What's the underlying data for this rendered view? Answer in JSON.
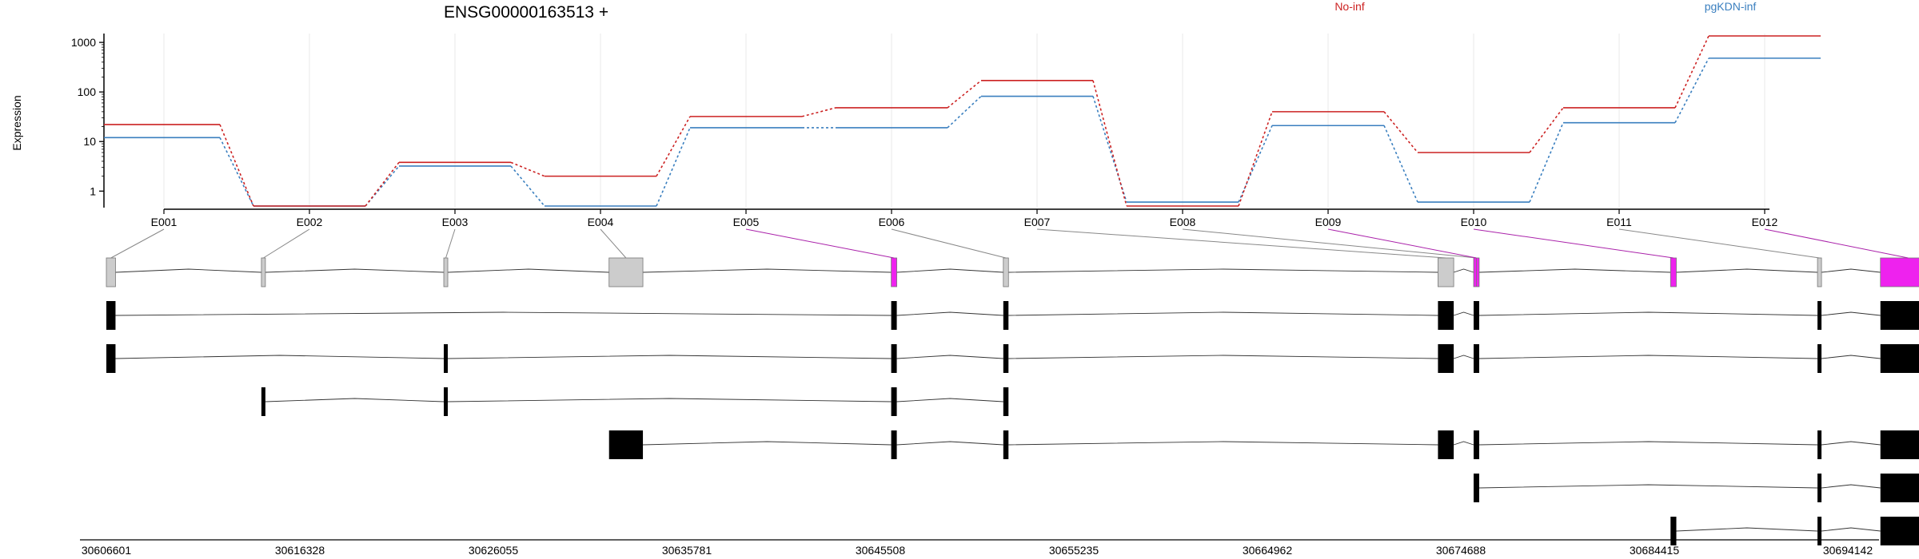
{
  "chart_data": {
    "type": "line",
    "title": "ENSG00000163513 +",
    "ylabel": "Expression",
    "yscale": "log",
    "yticks": [
      "1",
      "10",
      "100",
      "1000"
    ],
    "categories": [
      "E001",
      "E002",
      "E003",
      "E004",
      "E005",
      "E006",
      "E007",
      "E008",
      "E009",
      "E010",
      "E011",
      "E012"
    ],
    "series": [
      {
        "name": "No-inf",
        "color": "#cc2222",
        "values": [
          22,
          0.5,
          3.8,
          2.0,
          32,
          48,
          170,
          0.5,
          40,
          6,
          48,
          1350
        ]
      },
      {
        "name": "pgKDN-inf",
        "color": "#3a7fbf",
        "values": [
          12,
          0.5,
          3.2,
          0.5,
          19,
          19,
          82,
          0.6,
          21,
          0.6,
          24,
          480
        ]
      }
    ],
    "highlight_color": "#ee22ee",
    "highlighted_exons": [
      "E005",
      "E009",
      "E010",
      "E012"
    ],
    "genomic_coords": [
      "30606601",
      "30616328",
      "30626055",
      "30635781",
      "30645508",
      "30655235",
      "30664962",
      "30674688",
      "30684415",
      "30694142"
    ],
    "genomic_range": [
      30606601,
      30694142
    ],
    "exons_bp": [
      [
        30606601,
        30607061
      ],
      [
        30614388,
        30614588
      ],
      [
        30623548,
        30623688
      ],
      [
        30631848,
        30633548
      ],
      [
        30646018,
        30646298
      ],
      [
        30651648,
        30651908
      ],
      [
        30673478,
        30674268
      ],
      [
        30675268,
        30675548
      ],
      [
        30685158,
        30685448
      ],
      [
        30692538,
        30692718
      ],
      [
        30695698,
        30698478
      ]
    ],
    "exon_to_segment": [
      0,
      1,
      2,
      3,
      4,
      5,
      6,
      7,
      7,
      8,
      9,
      10
    ],
    "transcripts": [
      [
        0,
        4,
        5,
        6,
        7,
        9,
        10
      ],
      [
        0,
        2,
        4,
        5,
        6,
        7,
        9,
        10
      ],
      [
        1,
        2,
        4,
        5
      ],
      [
        3,
        4,
        5,
        6,
        7,
        9,
        10
      ],
      [
        7,
        9,
        10
      ],
      [
        8,
        9,
        10
      ]
    ]
  }
}
